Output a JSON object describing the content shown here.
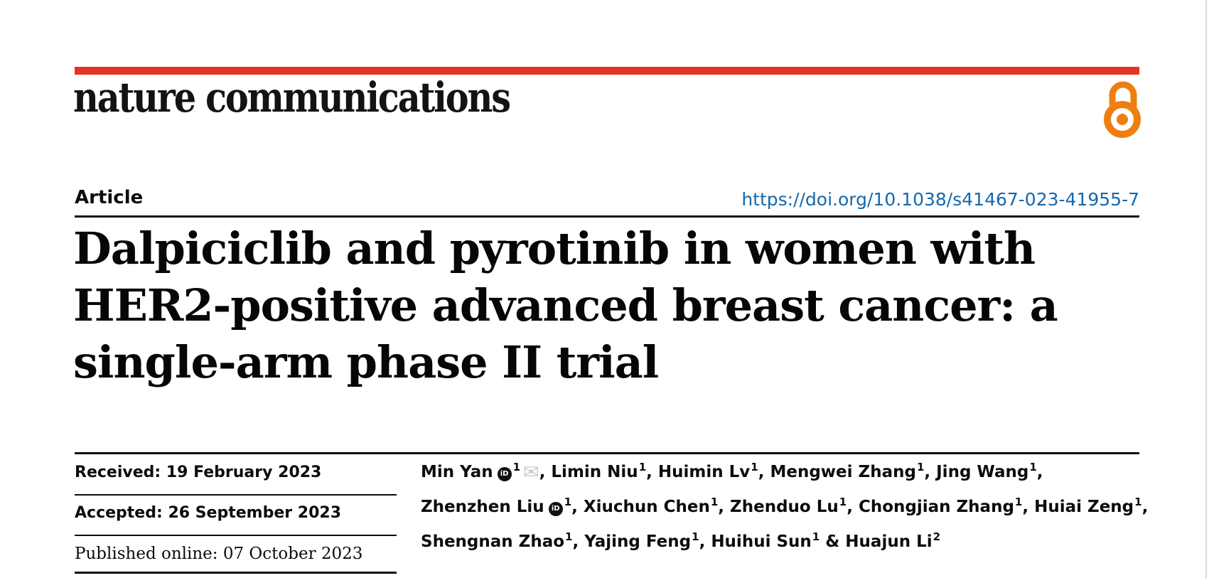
{
  "journal": {
    "name": "nature communications",
    "article_type_label": "Article",
    "doi_link": "https://doi.org/10.1038/s41467-023-41955-7"
  },
  "article": {
    "title_lines": [
      "Dalpiciclib and pyrotinib in women with",
      "HER2-positive advanced breast cancer: a",
      "single-arm phase II trial"
    ]
  },
  "dates": {
    "rows": [
      {
        "label": "Received:",
        "value": "19 February 2023"
      },
      {
        "label": "Accepted:",
        "value": "26 September 2023"
      },
      {
        "label": "Published online:",
        "value": "07 October 2023"
      }
    ]
  },
  "authors": {
    "lines": [
      [
        {
          "name": "Min Yan",
          "orcid": true,
          "sup": "1",
          "mail": true,
          "tail": ", "
        },
        {
          "name": "Limin Niu",
          "sup": "1",
          "tail": ", "
        },
        {
          "name": "Huimin Lv",
          "sup": "1",
          "tail": ", "
        },
        {
          "name": "Mengwei Zhang",
          "sup": "1",
          "tail": ", "
        },
        {
          "name": "Jing Wang",
          "sup": "1",
          "tail": ","
        }
      ],
      [
        {
          "name": "Zhenzhen Liu",
          "orcid": true,
          "sup": "1",
          "tail": ", "
        },
        {
          "name": "Xiuchun Chen",
          "sup": "1",
          "tail": ", "
        },
        {
          "name": "Zhenduo Lu",
          "sup": "1",
          "tail": ", "
        },
        {
          "name": "Chongjian Zhang",
          "sup": "1",
          "tail": ", "
        },
        {
          "name": "Huiai Zeng",
          "sup": "1",
          "tail": ","
        }
      ],
      [
        {
          "name": "Shengnan Zhao",
          "sup": "1",
          "tail": ", "
        },
        {
          "name": "Yajing Feng",
          "sup": "1",
          "tail": ", "
        },
        {
          "name": "Huihui Sun",
          "sup": "1",
          "tail": " & "
        },
        {
          "name": "Huajun Li",
          "sup": "2",
          "tail": ""
        }
      ]
    ]
  },
  "icons": {
    "open_access": "open-access-unlocked-padlock",
    "orcid_text": "iD",
    "mail_glyph": "✉"
  },
  "colors": {
    "brand_red": "#e63323",
    "oa_orange": "#ed7f11",
    "link_blue": "#1668ad",
    "mail_gray": "#c9c9c9",
    "rule_black": "#0c0c0c"
  }
}
